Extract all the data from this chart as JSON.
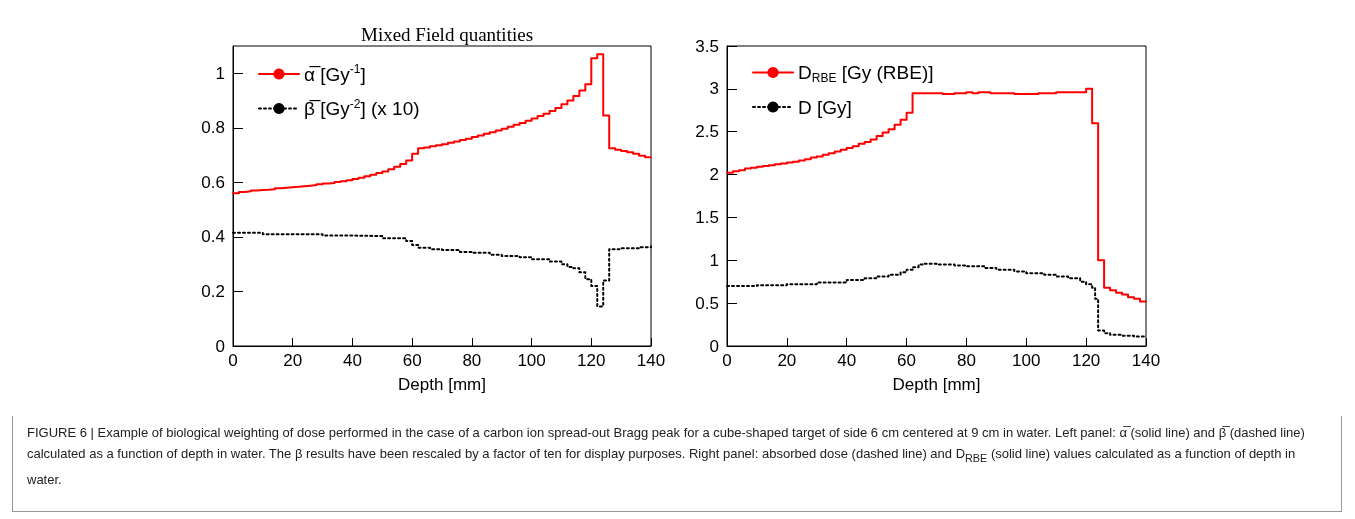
{
  "chart_data": [
    {
      "type": "step",
      "title": "Mixed Field quantities",
      "xlabel": "Depth [mm]",
      "xlim": [
        0,
        140
      ],
      "xticks": [
        0,
        20,
        40,
        60,
        80,
        100,
        120,
        140
      ],
      "ylim": [
        0,
        1.1
      ],
      "yticks": [
        0,
        0.2,
        0.4,
        0.6,
        0.8,
        1
      ],
      "legend": "top left",
      "grid": false,
      "marker": "none",
      "series": [
        {
          "name": "α̅ [Gy$^{-1}$]",
          "color": "#ff0000",
          "line_style": "solid",
          "x": [
            0,
            2,
            4,
            6,
            8,
            10,
            12,
            14,
            16,
            18,
            20,
            22,
            24,
            26,
            28,
            30,
            32,
            34,
            36,
            38,
            40,
            42,
            44,
            46,
            48,
            50,
            52,
            54,
            56,
            58,
            60,
            62,
            64,
            66,
            68,
            70,
            72,
            74,
            76,
            78,
            80,
            82,
            84,
            86,
            88,
            90,
            92,
            94,
            96,
            98,
            100,
            102,
            104,
            106,
            108,
            110,
            112,
            114,
            116,
            118,
            120,
            122,
            124,
            126,
            128,
            130,
            132,
            134,
            136,
            138,
            140
          ],
          "values": [
            0.56,
            0.565,
            0.567,
            0.57,
            0.572,
            0.573,
            0.575,
            0.578,
            0.58,
            0.582,
            0.584,
            0.586,
            0.588,
            0.59,
            0.593,
            0.596,
            0.598,
            0.601,
            0.604,
            0.608,
            0.612,
            0.617,
            0.622,
            0.628,
            0.634,
            0.64,
            0.648,
            0.657,
            0.667,
            0.68,
            0.705,
            0.725,
            0.728,
            0.732,
            0.736,
            0.74,
            0.745,
            0.75,
            0.755,
            0.76,
            0.766,
            0.772,
            0.778,
            0.784,
            0.79,
            0.797,
            0.804,
            0.811,
            0.818,
            0.826,
            0.834,
            0.843,
            0.852,
            0.862,
            0.873,
            0.886,
            0.9,
            0.917,
            0.937,
            0.96,
            1.055,
            1.07,
            0.845,
            0.725,
            0.72,
            0.715,
            0.71,
            0.705,
            0.698,
            0.692,
            0.69
          ]
        },
        {
          "name": "β̅ [Gy$^{-2}$] (x 10)",
          "color": "#000000",
          "line_style": "dotted",
          "x": [
            0,
            4,
            10,
            20,
            30,
            40,
            50,
            58,
            60,
            62,
            66,
            70,
            76,
            80,
            86,
            90,
            96,
            100,
            106,
            110,
            112,
            114,
            116,
            118,
            120,
            122,
            124,
            126,
            130,
            136,
            140
          ],
          "values": [
            0.415,
            0.415,
            0.41,
            0.41,
            0.405,
            0.403,
            0.395,
            0.385,
            0.37,
            0.36,
            0.355,
            0.352,
            0.345,
            0.342,
            0.335,
            0.33,
            0.325,
            0.318,
            0.31,
            0.3,
            0.29,
            0.285,
            0.27,
            0.245,
            0.22,
            0.145,
            0.24,
            0.355,
            0.358,
            0.362,
            0.365
          ]
        }
      ],
      "annotations": [
        "FIGURE 6 | Example of biological weighting of dose performed in the case of a carbon ion spread-out Bragg peak for a cube-shaped target of side 6 cm centered at 9 cm in water. Left panel: α̅ (solid line) and β̅ (dashed line) calculated as a function of depth in water. The β results have been rescaled by a factor of ten for display purposes. Right panel: absorbed dose (dashed line) and D$_{RBE}$ (solid line) values calculated as a function of depth in water."
      ]
    },
    {
      "type": "step",
      "xlabel": "Depth [mm]",
      "xlim": [
        0,
        140
      ],
      "xticks": [
        0,
        20,
        40,
        60,
        80,
        100,
        120,
        140
      ],
      "ylim": [
        0,
        3.5
      ],
      "yticks": [
        0,
        0.5,
        1,
        1.5,
        2,
        2.5,
        3,
        3.5
      ],
      "legend": "top left",
      "grid": false,
      "marker": "none",
      "series": [
        {
          "name": "D$_{RBE}$ [Gy (RBE)]",
          "color": "#ff0000",
          "line_style": "solid",
          "x": [
            0,
            2,
            4,
            6,
            8,
            10,
            12,
            14,
            16,
            18,
            20,
            22,
            24,
            26,
            28,
            30,
            32,
            34,
            36,
            38,
            40,
            42,
            44,
            46,
            48,
            50,
            52,
            54,
            56,
            58,
            60,
            62,
            72,
            76,
            80,
            82,
            84,
            88,
            96,
            104,
            110,
            120,
            122,
            124,
            126,
            128,
            130,
            132,
            134,
            136,
            138,
            140
          ],
          "values": [
            2.02,
            2.04,
            2.05,
            2.07,
            2.08,
            2.09,
            2.1,
            2.11,
            2.12,
            2.13,
            2.14,
            2.15,
            2.165,
            2.18,
            2.2,
            2.21,
            2.23,
            2.25,
            2.27,
            2.29,
            2.31,
            2.33,
            2.36,
            2.38,
            2.41,
            2.45,
            2.49,
            2.53,
            2.58,
            2.64,
            2.72,
            2.95,
            2.94,
            2.95,
            2.96,
            2.95,
            2.96,
            2.95,
            2.94,
            2.95,
            2.96,
            3.0,
            2.6,
            1.0,
            0.68,
            0.65,
            0.62,
            0.6,
            0.57,
            0.55,
            0.52,
            0.52
          ]
        },
        {
          "name": "D [Gy]",
          "color": "#000000",
          "line_style": "dotted",
          "x": [
            0,
            10,
            20,
            30,
            40,
            46,
            50,
            54,
            58,
            60,
            62,
            64,
            66,
            70,
            76,
            80,
            86,
            90,
            96,
            100,
            106,
            110,
            114,
            118,
            120,
            122,
            123,
            124,
            126,
            128,
            132,
            136,
            140
          ],
          "values": [
            0.7,
            0.71,
            0.72,
            0.74,
            0.77,
            0.79,
            0.81,
            0.83,
            0.86,
            0.89,
            0.92,
            0.95,
            0.96,
            0.95,
            0.94,
            0.93,
            0.91,
            0.89,
            0.87,
            0.85,
            0.83,
            0.81,
            0.79,
            0.75,
            0.72,
            0.68,
            0.55,
            0.18,
            0.15,
            0.13,
            0.12,
            0.11,
            0.1
          ]
        }
      ]
    }
  ]
}
